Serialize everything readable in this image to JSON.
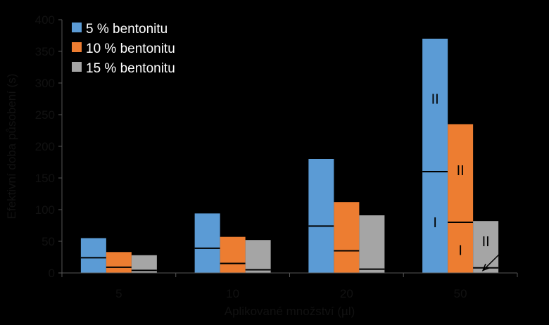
{
  "chart_data": {
    "type": "bar",
    "title": "",
    "xlabel": "Aplikované množství (µl)",
    "ylabel": "Efektivní doba působení (s)",
    "ylim": [
      0,
      400
    ],
    "yticks": [
      0,
      50,
      100,
      150,
      200,
      250,
      300,
      350,
      400
    ],
    "categories": [
      "5",
      "10",
      "20",
      "50"
    ],
    "legend_position": "top-left",
    "grid": false,
    "series": [
      {
        "name": "5 % bentonitu",
        "color": "#5b9bd5",
        "values": [
          55,
          94,
          180,
          370
        ],
        "markers": [
          24,
          39,
          74,
          160
        ]
      },
      {
        "name": "10 % bentonitu",
        "color": "#ed7d31",
        "values": [
          33,
          57,
          112,
          235
        ],
        "markers": [
          9,
          15,
          35,
          80
        ]
      },
      {
        "name": "15 % bentonitu",
        "color": "#a5a5a5",
        "values": [
          28,
          52,
          91,
          82
        ],
        "markers": [
          4,
          5,
          6,
          8
        ]
      }
    ],
    "annotations": [
      {
        "text": "II",
        "category": "50",
        "series": 0,
        "y": 275
      },
      {
        "text": "I",
        "category": "50",
        "series": 0,
        "y": 80
      },
      {
        "text": "II",
        "category": "50",
        "series": 1,
        "y": 162
      },
      {
        "text": "I",
        "category": "50",
        "series": 1,
        "y": 36
      },
      {
        "text": "II",
        "category": "50",
        "series": 2,
        "y": 50
      },
      {
        "text": "I",
        "category": "50",
        "series": 2,
        "y": 45
      }
    ]
  }
}
